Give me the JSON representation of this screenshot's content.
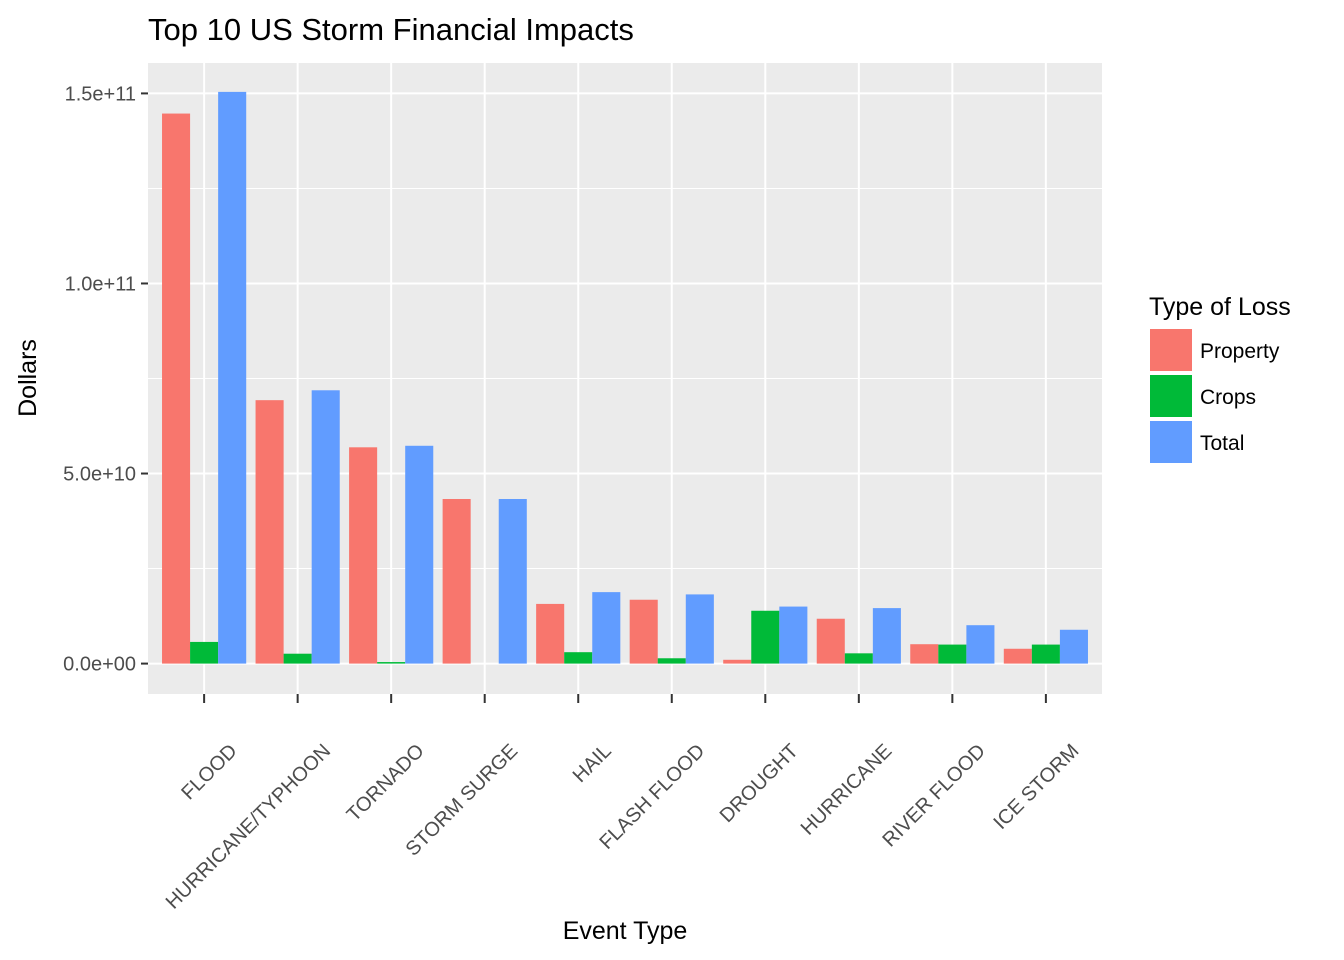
{
  "chart_data": {
    "type": "bar",
    "title": "Top 10 US Storm Financial Impacts",
    "xlabel": "Event Type",
    "ylabel": "Dollars",
    "categories": [
      "FLOOD",
      "HURRICANE/TYPHOON",
      "TORNADO",
      "STORM SURGE",
      "HAIL",
      "FLASH FLOOD",
      "DROUGHT",
      "HURRICANE",
      "RIVER FLOOD",
      "ICE STORM"
    ],
    "series": [
      {
        "name": "Property",
        "color": "#F8766D",
        "values": [
          144700000000,
          69300000000,
          56900000000,
          43300000000,
          15700000000,
          16800000000,
          1000000000,
          11800000000,
          5100000000,
          3900000000
        ]
      },
      {
        "name": "Crops",
        "color": "#00BA38",
        "values": [
          5700000000,
          2600000000,
          400000000,
          0,
          3000000000,
          1400000000,
          13900000000,
          2700000000,
          5000000000,
          5000000000
        ]
      },
      {
        "name": "Total",
        "color": "#619CFF",
        "values": [
          150400000000,
          71900000000,
          57300000000,
          43300000000,
          18800000000,
          18200000000,
          15000000000,
          14600000000,
          10100000000,
          8900000000
        ]
      }
    ],
    "yticks": [
      0,
      50000000000,
      100000000000,
      150000000000
    ],
    "ytick_labels": [
      "0.0e+00",
      "5.0e+10",
      "1.0e+11",
      "1.5e+11"
    ],
    "ylim": [
      -8000000000,
      158000000000
    ],
    "grid": true,
    "legend": {
      "title": "Type of Loss",
      "position": "right"
    },
    "panel_background": "#EBEBEB"
  }
}
